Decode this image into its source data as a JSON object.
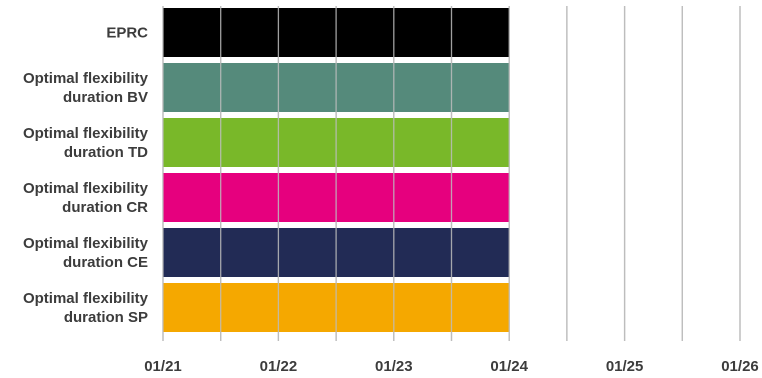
{
  "chart_data": {
    "type": "bar",
    "orientation": "horizontal",
    "x_axis": {
      "type": "date",
      "ticks": [
        "01/21",
        "01/22",
        "01/23",
        "01/24",
        "01/25",
        "01/26"
      ],
      "range": [
        "2021-01",
        "2026-01"
      ],
      "grid": true,
      "minor_grid": "half-year"
    },
    "categories": [
      "EPRC",
      "Optimal flexibility duration BV",
      "Optimal flexibility duration TD",
      "Optimal flexibility duration CR",
      "Optimal flexibility duration CE",
      "Optimal flexibility duration SP"
    ],
    "label_lines": [
      [
        "EPRC"
      ],
      [
        "Optimal flexibility",
        "duration BV"
      ],
      [
        "Optimal flexibility",
        "duration TD"
      ],
      [
        "Optimal flexibility",
        "duration CR"
      ],
      [
        "Optimal flexibility",
        "duration CE"
      ],
      [
        "Optimal flexibility",
        "duration SP"
      ]
    ],
    "bars": [
      {
        "start": "01/21",
        "end": "01/24",
        "color": "#000000"
      },
      {
        "start": "01/21",
        "end": "01/24",
        "color": "#558a7b"
      },
      {
        "start": "01/21",
        "end": "01/24",
        "color": "#79b829"
      },
      {
        "start": "01/21",
        "end": "01/24",
        "color": "#e6007e"
      },
      {
        "start": "01/21",
        "end": "01/24",
        "color": "#222b55"
      },
      {
        "start": "01/21",
        "end": "01/24",
        "color": "#f5a800"
      }
    ],
    "title": "",
    "xlabel": "",
    "ylabel": "",
    "legend": "none",
    "grid_color": "#bdbdbd"
  }
}
